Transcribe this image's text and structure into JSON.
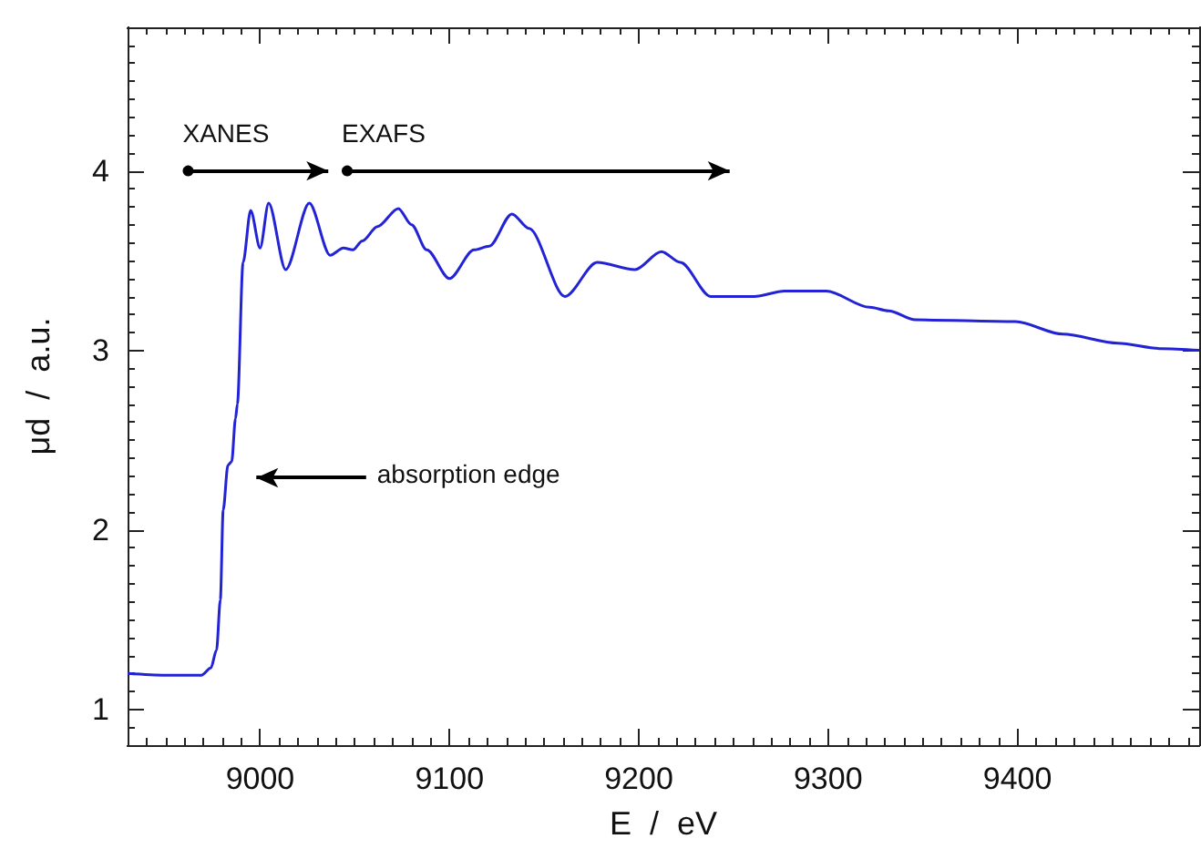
{
  "chart_data": {
    "type": "line",
    "xlabel": "E  /  eV",
    "ylabel": "μd  /  a.u.",
    "xlim": [
      8930,
      9496
    ],
    "xticks": [
      9000,
      9100,
      9200,
      9300,
      9400
    ],
    "ylim": [
      0.8,
      4.8
    ],
    "yticks": [
      1,
      2,
      3,
      4
    ],
    "grid": false,
    "marker": "none",
    "line_style": "solid",
    "series": [
      {
        "color": "#2323d6",
        "x": [
          8930,
          8950,
          8969,
          8974,
          8977,
          8979,
          8980.5,
          8983,
          8985,
          8987,
          8988,
          8991,
          8995,
          9000,
          9004.5,
          9013.5,
          9026,
          9037,
          9044,
          9049,
          9054,
          9062,
          9073,
          9080,
          9088,
          9100,
          9113,
          9121,
          9133,
          9142,
          9161,
          9178,
          9198,
          9212,
          9222,
          9238,
          9261,
          9277,
          9299,
          9322,
          9332,
          9346,
          9399,
          9424,
          9453,
          9476,
          9496
        ],
        "values": [
          1.2,
          1.19,
          1.19,
          1.23,
          1.33,
          1.61,
          2.11,
          2.36,
          2.38,
          2.62,
          2.7,
          3.49,
          3.78,
          3.57,
          3.82,
          3.45,
          3.82,
          3.53,
          3.57,
          3.56,
          3.61,
          3.69,
          3.79,
          3.7,
          3.56,
          3.4,
          3.56,
          3.58,
          3.76,
          3.68,
          3.3,
          3.49,
          3.45,
          3.55,
          3.49,
          3.3,
          3.3,
          3.33,
          3.33,
          3.24,
          3.22,
          3.17,
          3.16,
          3.09,
          3.04,
          3.01,
          3.0
        ]
      }
    ],
    "annotations": [
      {
        "text": "XANES",
        "x": 8962,
        "y": 4
      },
      {
        "text": "EXAFS",
        "x": 9046,
        "y": 4
      },
      "absorption edge"
    ]
  }
}
